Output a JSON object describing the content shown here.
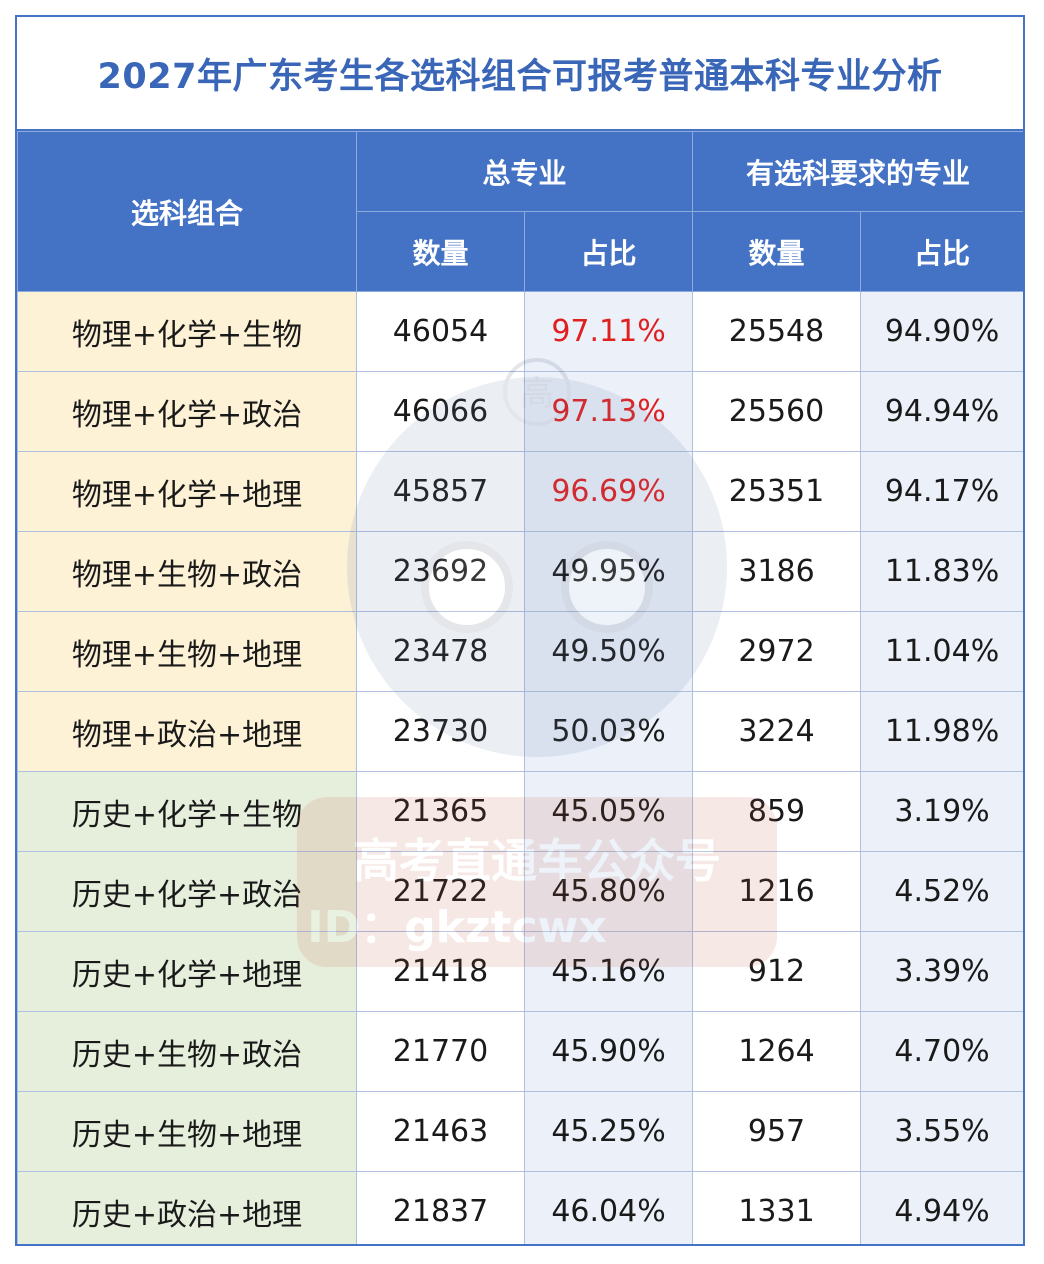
{
  "title": "2027年广东考生各选科组合可报考普通本科专业分析",
  "header": {
    "combo": "选科组合",
    "total_group": "总专业",
    "req_group": "有选科要求的专业",
    "count": "数量",
    "ratio": "占比"
  },
  "rows": [
    {
      "combo": "物理+化学+生物",
      "total": "46054",
      "total_pct": "97.11%",
      "req": "25548",
      "req_pct": "94.90%"
    },
    {
      "combo": "物理+化学+政治",
      "total": "46066",
      "total_pct": "97.13%",
      "req": "25560",
      "req_pct": "94.94%"
    },
    {
      "combo": "物理+化学+地理",
      "total": "45857",
      "total_pct": "96.69%",
      "req": "25351",
      "req_pct": "94.17%"
    },
    {
      "combo": "物理+生物+政治",
      "total": "23692",
      "total_pct": "49.95%",
      "req": "3186",
      "req_pct": "11.83%"
    },
    {
      "combo": "物理+生物+地理",
      "total": "23478",
      "total_pct": "49.50%",
      "req": "2972",
      "req_pct": "11.04%"
    },
    {
      "combo": "物理+政治+地理",
      "total": "23730",
      "total_pct": "50.03%",
      "req": "3224",
      "req_pct": "11.98%"
    },
    {
      "combo": "历史+化学+生物",
      "total": "21365",
      "total_pct": "45.05%",
      "req": "859",
      "req_pct": "3.19%"
    },
    {
      "combo": "历史+化学+政治",
      "total": "21722",
      "total_pct": "45.80%",
      "req": "1216",
      "req_pct": "4.52%"
    },
    {
      "combo": "历史+化学+地理",
      "total": "21418",
      "total_pct": "45.16%",
      "req": "912",
      "req_pct": "3.39%"
    },
    {
      "combo": "历史+生物+政治",
      "total": "21770",
      "total_pct": "45.90%",
      "req": "1264",
      "req_pct": "4.70%"
    },
    {
      "combo": "历史+生物+地理",
      "total": "21463",
      "total_pct": "45.25%",
      "req": "957",
      "req_pct": "3.55%"
    },
    {
      "combo": "历史+政治+地理",
      "total": "21837",
      "total_pct": "46.04%",
      "req": "1331",
      "req_pct": "4.94%"
    }
  ],
  "watermark": {
    "badge": "高",
    "line1": "高考直通车公众号",
    "line2": "ID：gkztcwx"
  },
  "colors": {
    "header_bg": "#4472c4",
    "title_text": "#3a66b8",
    "highlight_red": "#e02020",
    "physics_rows_bg": "#fdf1d6",
    "history_rows_bg": "#e6efdc",
    "alt_cell_bg": "#ecf1f9"
  }
}
